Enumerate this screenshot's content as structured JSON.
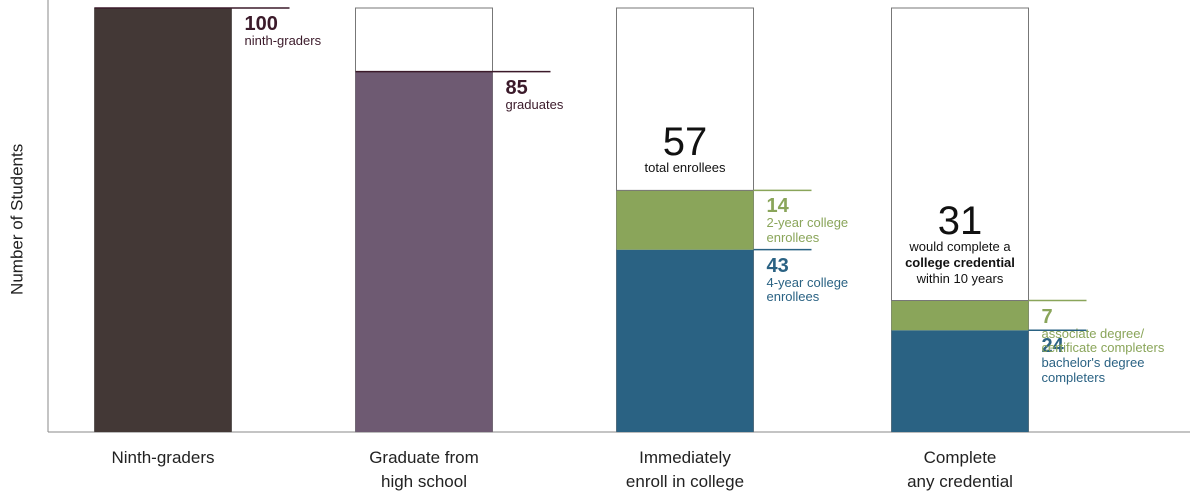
{
  "chart_data": {
    "type": "stacked_bar",
    "y_label": "Number of Students",
    "ylim": [
      0,
      100
    ],
    "categories": [
      "Ninth-graders",
      "Graduate from\nhigh school",
      "Immediately\nenroll in college",
      "Complete\nany credential"
    ],
    "bars": [
      {
        "segments": [
          {
            "value": 100,
            "label": "ninth-graders",
            "color": "#433836"
          }
        ]
      },
      {
        "segments": [
          {
            "value": 85,
            "label": "graduates",
            "color": "#6e5a72"
          }
        ]
      },
      {
        "total": 57,
        "total_label": [
          "total enrollees"
        ],
        "segments": [
          {
            "value": 43,
            "label": "4-year college\nenrollees",
            "color": "#2a6283"
          },
          {
            "value": 14,
            "label": "2-year college\nenrollees",
            "color": "#8aa55a"
          }
        ]
      },
      {
        "total": 31,
        "total_label": [
          "would complete a",
          "college credential",
          "within 10 years"
        ],
        "segments": [
          {
            "value": 24,
            "label": "bachelor's degree\ncompleters",
            "color": "#2a6283"
          },
          {
            "value": 7,
            "label": "associate degree/\ncertificate completers",
            "color": "#8aa55a"
          }
        ]
      }
    ]
  }
}
